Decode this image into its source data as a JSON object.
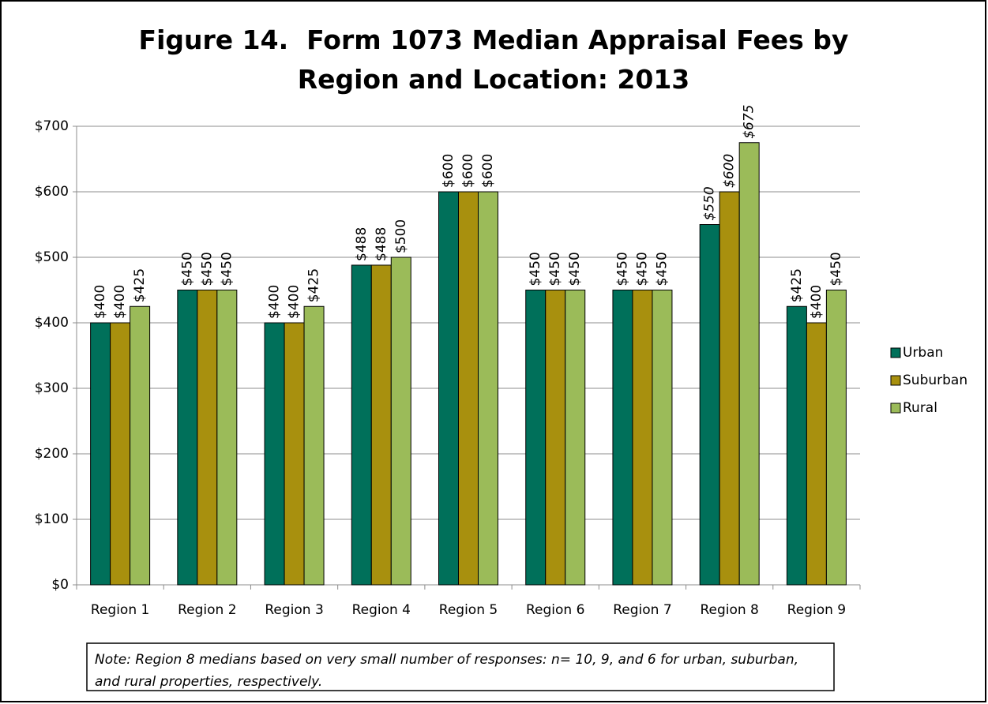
{
  "chart_data": {
    "type": "bar",
    "title": "Figure 14.  Form 1073 Median Appraisal Fees by Region and Location: 2013",
    "categories": [
      "Region 1",
      "Region 2",
      "Region 3",
      "Region 4",
      "Region 5",
      "Region 6",
      "Region 7",
      "Region 8",
      "Region 9"
    ],
    "series": [
      {
        "name": "Urban",
        "color": "#00705a",
        "values": [
          400,
          450,
          400,
          488,
          600,
          450,
          450,
          550,
          425
        ],
        "value_labels": [
          "$400",
          "$450",
          "$400",
          "$488",
          "$600",
          "$450",
          "$450",
          "$550",
          "$425"
        ]
      },
      {
        "name": "Suburban",
        "color": "#a8900e",
        "values": [
          400,
          450,
          400,
          488,
          600,
          450,
          450,
          600,
          400
        ],
        "value_labels": [
          "$400",
          "$450",
          "$400",
          "$488",
          "$600",
          "$450",
          "$450",
          "$600",
          "$400"
        ]
      },
      {
        "name": "Rural",
        "color": "#9bbb59",
        "values": [
          425,
          450,
          425,
          500,
          600,
          450,
          450,
          675,
          450
        ],
        "value_labels": [
          "$425",
          "$450",
          "$425",
          "$500",
          "$600",
          "$450",
          "$450",
          "$675",
          "$450"
        ]
      }
    ],
    "ylim": [
      0,
      700
    ],
    "yticks": [
      {
        "value": 0,
        "label": "$0"
      },
      {
        "value": 100,
        "label": "$100"
      },
      {
        "value": 200,
        "label": "$200"
      },
      {
        "value": 300,
        "label": "$300"
      },
      {
        "value": 400,
        "label": "$400"
      },
      {
        "value": 500,
        "label": "$500"
      },
      {
        "value": 600,
        "label": "$600"
      },
      {
        "value": 700,
        "label": "$700"
      }
    ],
    "grid": true,
    "legend": "right",
    "note": "Note: Region 8 medians based on very small number of responses: n= 10, 9, and 6 for urban, suburban, and rural properties, respectively."
  }
}
